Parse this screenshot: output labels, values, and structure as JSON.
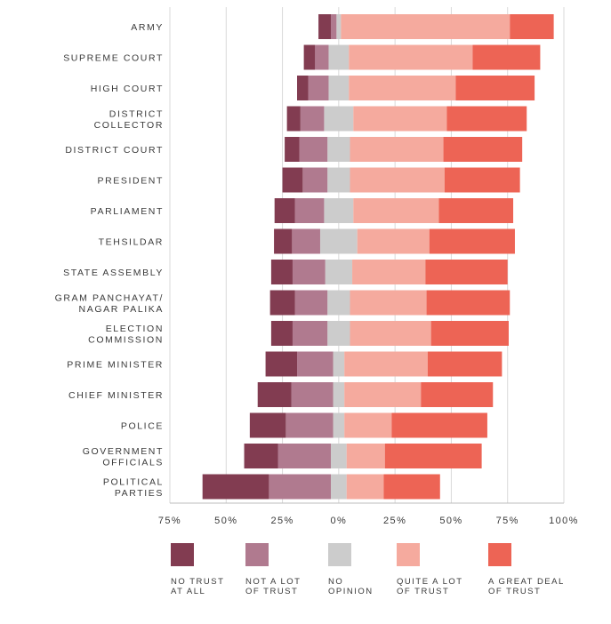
{
  "chart_data": {
    "type": "bar",
    "orientation": "horizontal",
    "stacked": "diverging",
    "categories": [
      [
        "ARMY"
      ],
      [
        "SUPREME COURT"
      ],
      [
        "HIGH COURT"
      ],
      [
        "DISTRICT",
        "COLLECTOR"
      ],
      [
        "DISTRICT COURT"
      ],
      [
        "PRESIDENT"
      ],
      [
        "PARLIAMENT"
      ],
      [
        "TEHSILDAR"
      ],
      [
        "STATE ASSEMBLY"
      ],
      [
        "GRAM PANCHAYAT/",
        "NAGAR PALIKA"
      ],
      [
        "ELECTION",
        "COMMISSION"
      ],
      [
        "PRIME MINISTER"
      ],
      [
        "CHIEF MINISTER"
      ],
      [
        "POLICE"
      ],
      [
        "GOVERNMENT",
        "OFFICIALS"
      ],
      [
        "POLITICAL",
        "PARTIES"
      ]
    ],
    "series": [
      {
        "name": "NO TRUST AT ALL",
        "legend_lines": [
          "NO TRUST",
          "AT ALL"
        ],
        "color": "#823c51",
        "side": "negative",
        "values": [
          5.5,
          5,
          5,
          6,
          6.5,
          9,
          9,
          8,
          9.5,
          11,
          9.5,
          14,
          15,
          16,
          15,
          29.5
        ]
      },
      {
        "name": "NOT A LOT OF TRUST",
        "legend_lines": [
          "NOT A LOT",
          "OF TRUST"
        ],
        "color": "#b07a8f",
        "side": "negative",
        "values": [
          2.5,
          6,
          9,
          10.5,
          12.5,
          11,
          13,
          12.5,
          14.5,
          14.5,
          15.5,
          16,
          18.5,
          21,
          23.5,
          27.5
        ]
      },
      {
        "name": "NO OPINION",
        "legend_lines": [
          "NO",
          "OPINION"
        ],
        "color": "#cccccc",
        "side": "split",
        "values": [
          2,
          9,
          9,
          13,
          10,
          10,
          13,
          16.5,
          12,
          10,
          10,
          5,
          5,
          5,
          7,
          7
        ]
      },
      {
        "name": "QUITE A LOT OF TRUST",
        "legend_lines": [
          "QUITE A LOT",
          "OF TRUST"
        ],
        "color": "#f5aa9e",
        "side": "positive",
        "values": [
          75,
          55,
          47.5,
          41.5,
          41.5,
          42,
          38,
          32,
          32.5,
          34,
          36,
          37,
          34,
          21,
          17,
          16.5
        ]
      },
      {
        "name": "A GREAT DEAL OF TRUST",
        "legend_lines": [
          "A GREAT DEAL",
          "OF TRUST"
        ],
        "color": "#ed6455",
        "side": "positive",
        "values": [
          19.5,
          30,
          35,
          35.5,
          35,
          33.5,
          33,
          38,
          36.5,
          37,
          34.5,
          33,
          32,
          42.5,
          43,
          25
        ]
      }
    ],
    "xlim": [
      -75,
      100
    ],
    "xticks": [
      -75,
      -50,
      -25,
      0,
      25,
      50,
      75,
      100
    ],
    "xtick_labels": [
      "75%",
      "50%",
      "25%",
      "0%",
      "25%",
      "50%",
      "75%",
      "100%"
    ],
    "grid": "vertical",
    "legend_position": "bottom",
    "title": "",
    "xlabel": "",
    "ylabel": ""
  }
}
